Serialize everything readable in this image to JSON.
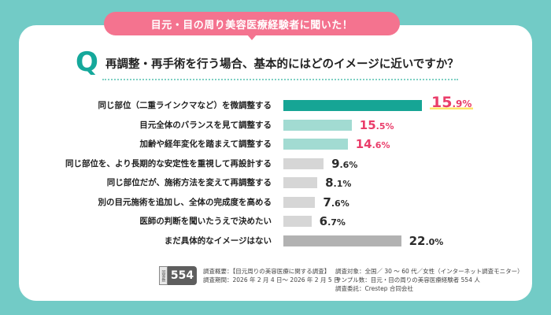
{
  "banner": "目元・目の周り美容医療経験者に聞いた！",
  "question": {
    "mark": "Q",
    "text": "再調整・再手術を行う場合、基本的にはどのイメージに近いですか？"
  },
  "colors": {
    "background": "#72cbc6",
    "banner": "#f4738f",
    "top_bar": "#16a595",
    "light_teal_bar": "#a2dbd2",
    "gray_bar": "#d6d6d6",
    "dark_gray_bar": "#b2b2b2",
    "pink_text": "#ea3d6a",
    "highlight": "#fde46b"
  },
  "chart_data": {
    "type": "bar",
    "orientation": "horizontal",
    "title": "再調整・再手術を行う場合、基本的にはどのイメージに近いですか？",
    "unit": "%",
    "categories": [
      "同じ部位（二重ラインクマなど）を微調整する",
      "目元全体のバランスを見て調整する",
      "加齢や経年変化を踏まえて調整する",
      "同じ部位を、より長期的な安定性を重視して再設計する",
      "同じ部位だが、施術方法を変えて再調整する",
      "別の目元施術を追加し、全体の完成度を高める",
      "医師の判断を聞いたうえで決めたい",
      "まだ具体的なイメージはない"
    ],
    "values": [
      15.9,
      15.5,
      14.6,
      9.6,
      8.1,
      7.6,
      6.7,
      22.0
    ],
    "value_labels": [
      {
        "int": "15",
        "dec": ".9%"
      },
      {
        "int": "15",
        "dec": ".5%"
      },
      {
        "int": "14",
        "dec": ".6%"
      },
      {
        "int": "9",
        "dec": ".6%"
      },
      {
        "int": "8",
        "dec": ".1%"
      },
      {
        "int": "7",
        "dec": ".6%"
      },
      {
        "int": "6",
        "dec": ".7%"
      },
      {
        "int": "22",
        "dec": ".0%"
      }
    ],
    "bar_styles": [
      "top",
      "light",
      "light",
      "gray",
      "gray",
      "gray",
      "gray",
      "dark"
    ],
    "label_styles": [
      "pink-top",
      "pink",
      "pink",
      "dark",
      "dark",
      "dark",
      "dark",
      "dark"
    ]
  },
  "footer": {
    "n_label": "回答数",
    "n_value": "554",
    "overview": "調査概要：【目元周りの美容医療に関する調査】",
    "period": "調査期間：2026 年 2 月 4 日～ 2026 年 2 月 5 日",
    "target": "調査対象：全国／ 30 ～ 60 代／女性（インターネット調査モニター）",
    "sample": "サンプル数：目元・目の周りの美容医療経験者 554 人",
    "client": "調査委託：Crestep 合同会社"
  }
}
